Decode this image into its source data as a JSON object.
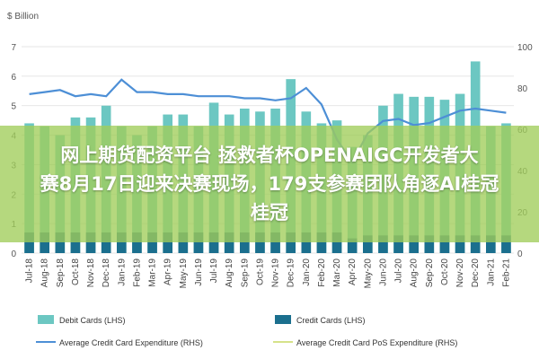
{
  "banner": {
    "line1": "网上期货配资平台 拯救者杯OPENAIGC开发者大",
    "line2": "赛8月17日迎来决赛现场，179支参赛团队角逐AI桂冠",
    "line3": "桂冠"
  },
  "chart_data": {
    "type": "bar",
    "units_label": "$ Billion",
    "categories": [
      "Jul-18",
      "Aug-18",
      "Sep-18",
      "Oct-18",
      "Nov-18",
      "Dec-18",
      "Jan-19",
      "Feb-19",
      "Mar-19",
      "Apr-19",
      "May-19",
      "Jun-19",
      "Jul-19",
      "Aug-19",
      "Sep-19",
      "Oct-19",
      "Nov-19",
      "Dec-19",
      "Jan-20",
      "Feb-20",
      "Mar-20",
      "Apr-20",
      "May-20",
      "Jun-20",
      "Jul-20",
      "Aug-20",
      "Sep-20",
      "Oct-20",
      "Nov-20",
      "Dec-20",
      "Jan-21",
      "Feb-21"
    ],
    "y_left": {
      "ylim": [
        0,
        7
      ],
      "ticks": [
        0,
        1,
        2,
        3,
        4,
        5,
        6,
        7
      ]
    },
    "y_right": {
      "ylim": [
        0,
        100
      ],
      "ticks": [
        0,
        20,
        40,
        60,
        80,
        100
      ]
    },
    "series": [
      {
        "name": "Debit Cards (LHS)",
        "kind": "bar",
        "axis": "left",
        "color": "#6cc7c2",
        "values": [
          4.4,
          4.3,
          4.0,
          4.6,
          4.6,
          5.0,
          4.3,
          4.0,
          4.3,
          4.7,
          4.7,
          4.3,
          5.1,
          4.7,
          4.9,
          4.8,
          4.9,
          5.9,
          4.8,
          4.4,
          4.5,
          3.6,
          4.0,
          5.0,
          5.4,
          5.3,
          5.3,
          5.2,
          5.4,
          6.5,
          4.3,
          4.4
        ]
      },
      {
        "name": "Credit Cards (LHS)",
        "kind": "bar",
        "axis": "left",
        "color": "#1b6f8e",
        "values": [
          0.7,
          0.7,
          0.7,
          0.7,
          0.7,
          0.7,
          0.7,
          0.7,
          0.7,
          0.7,
          0.7,
          0.7,
          0.7,
          0.7,
          0.7,
          0.7,
          0.7,
          0.7,
          0.7,
          0.7,
          0.7,
          0.5,
          0.6,
          0.6,
          0.6,
          0.6,
          0.6,
          0.6,
          0.6,
          0.6,
          0.6,
          0.6
        ]
      },
      {
        "name": "Average Credit Card Expenditure (RHS)",
        "kind": "line",
        "axis": "right",
        "color": "#4d8fd6",
        "values": [
          77,
          78,
          79,
          76,
          77,
          76,
          84,
          78,
          78,
          77,
          77,
          76,
          76,
          76,
          75,
          75,
          74,
          75,
          80,
          72,
          55,
          44,
          58,
          64,
          65,
          62,
          63,
          66,
          69,
          70,
          69,
          68
        ]
      },
      {
        "name": "Average Credit Card PoS Expenditure (RHS)",
        "kind": "line",
        "axis": "right",
        "color": "#d6e28a",
        "values": [
          null,
          null,
          null,
          null,
          null,
          null,
          null,
          null,
          null,
          null,
          null,
          null,
          null,
          null,
          null,
          null,
          null,
          null,
          null,
          null,
          null,
          null,
          null,
          null,
          null,
          null,
          null,
          null,
          null,
          null,
          null,
          null
        ]
      }
    ],
    "grid": true,
    "legend": "bottom"
  }
}
